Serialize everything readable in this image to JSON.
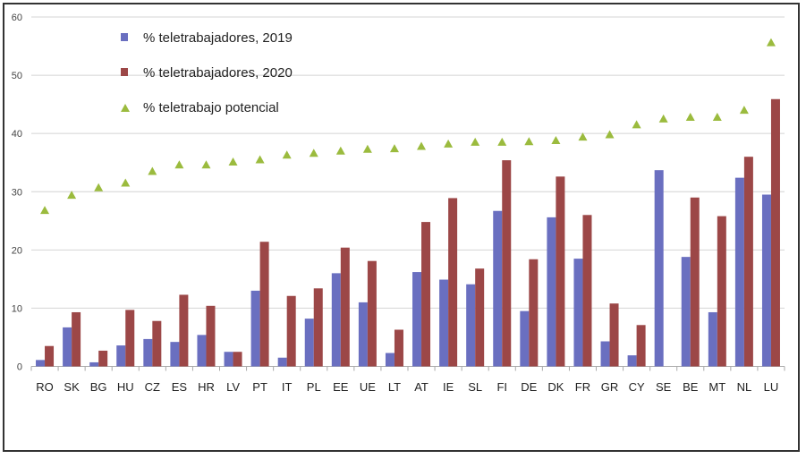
{
  "chart_data": {
    "type": "bar",
    "ylim": [
      0,
      60
    ],
    "yticks": [
      0,
      10,
      20,
      30,
      40,
      50,
      60
    ],
    "grid": true,
    "legend_position": "top-left",
    "categories": [
      "RO",
      "SK",
      "BG",
      "HU",
      "CZ",
      "ES",
      "HR",
      "LV",
      "PT",
      "IT",
      "PL",
      "EE",
      "UE",
      "LT",
      "AT",
      "IE",
      "SL",
      "FI",
      "DE",
      "DK",
      "FR",
      "GR",
      "CY",
      "SE",
      "BE",
      "MT",
      "NL",
      "LU"
    ],
    "series": [
      {
        "name": "% teletrabajadores, 2019",
        "kind": "bar",
        "color": "#6a6fc0",
        "values": [
          1.1,
          6.7,
          0.7,
          3.6,
          4.7,
          4.2,
          5.4,
          2.5,
          13.0,
          1.5,
          8.2,
          16.0,
          11.0,
          2.3,
          16.2,
          14.9,
          14.1,
          26.7,
          9.5,
          25.6,
          18.5,
          4.3,
          1.9,
          33.7,
          18.8,
          9.3,
          32.4,
          29.5
        ]
      },
      {
        "name": "% teletrabajadores, 2020",
        "kind": "bar",
        "color": "#9c4747",
        "values": [
          3.5,
          9.3,
          2.7,
          9.7,
          7.8,
          12.3,
          10.4,
          2.5,
          21.4,
          12.1,
          13.4,
          20.4,
          18.1,
          6.3,
          24.8,
          28.9,
          16.8,
          35.4,
          18.4,
          32.6,
          26.0,
          10.8,
          7.1,
          null,
          29.0,
          25.8,
          36.0,
          45.9
        ]
      },
      {
        "name": "% teletrabajo potencial",
        "kind": "marker-triangle",
        "color": "#9bbb3e",
        "values": [
          26.8,
          29.4,
          30.7,
          31.5,
          33.5,
          34.6,
          34.6,
          35.1,
          35.5,
          36.3,
          36.6,
          37.0,
          37.3,
          37.4,
          37.8,
          38.2,
          38.5,
          38.5,
          38.6,
          38.8,
          39.4,
          39.8,
          41.5,
          42.5,
          42.8,
          42.8,
          44.0,
          55.6
        ]
      }
    ]
  }
}
